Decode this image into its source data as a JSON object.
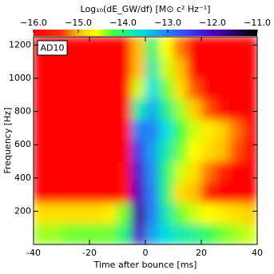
{
  "chart_data": {
    "type": "heatmap",
    "colorbar_label": "Log₁₀(dE_GW/df) [M⊙ c² Hz⁻¹]",
    "x_label": "Time after bounce [ms]",
    "y_label": "Frequency [Hz]",
    "annotation": "AD10",
    "xlim": [
      -40,
      40
    ],
    "ylim": [
      0,
      1250
    ],
    "xticks": [
      -40,
      -20,
      0,
      20,
      40
    ],
    "yticks": [
      200,
      400,
      600,
      800,
      1000,
      1200
    ],
    "clim": [
      -16,
      -11
    ],
    "cticks": [
      {
        "value": -16,
        "label": "−16.0"
      },
      {
        "value": -15,
        "label": "−15.0"
      },
      {
        "value": -14,
        "label": "−14.0"
      },
      {
        "value": -13,
        "label": "−13.0"
      },
      {
        "value": -12,
        "label": "−12.0"
      },
      {
        "value": -11,
        "label": "−11.0"
      }
    ],
    "colormap": [
      {
        "value": -16,
        "color": "#ff0000"
      },
      {
        "value": -15.4,
        "color": "#ff3000"
      },
      {
        "value": -15,
        "color": "#ffc000"
      },
      {
        "value": -14.6,
        "color": "#ffff00"
      },
      {
        "value": -14.2,
        "color": "#40ff40"
      },
      {
        "value": -13.6,
        "color": "#00e0e0"
      },
      {
        "value": -12.8,
        "color": "#3060ff"
      },
      {
        "value": -12,
        "color": "#5000c0"
      },
      {
        "value": -11,
        "color": "#000000"
      }
    ],
    "xbins": [
      -40,
      -35,
      -30,
      -25,
      -20,
      -15,
      -10,
      -5,
      0,
      5,
      10,
      15,
      20,
      25,
      30,
      35,
      40
    ],
    "ybins": [
      0,
      125,
      250,
      375,
      500,
      625,
      750,
      875,
      1000,
      1125,
      1250
    ],
    "z": [
      [
        -14.4,
        -14.4,
        -14.3,
        -14.3,
        -14.3,
        -14.3,
        -14.0,
        -12.0,
        -13.2,
        -13.6,
        -13.8,
        -13.9,
        -14.1,
        -14.3,
        -14.4,
        -14.5
      ],
      [
        -14.8,
        -14.8,
        -14.8,
        -14.8,
        -14.8,
        -14.7,
        -14.3,
        -11.8,
        -13.0,
        -13.8,
        -14.3,
        -14.5,
        -14.6,
        -14.7,
        -14.8,
        -14.9
      ],
      [
        -16,
        -16,
        -16,
        -16,
        -16,
        -16,
        -15.8,
        -12.0,
        -13.0,
        -14.0,
        -14.8,
        -15.0,
        -15.5,
        -16,
        -16,
        -16
      ],
      [
        -16,
        -16,
        -16,
        -16,
        -16,
        -16,
        -15.8,
        -12.2,
        -13.1,
        -14.0,
        -14.5,
        -14.8,
        -15.2,
        -15.6,
        -16,
        -16
      ],
      [
        -16,
        -16,
        -16,
        -16,
        -16,
        -16,
        -16,
        -12.5,
        -13.2,
        -13.8,
        -14.3,
        -14.6,
        -14.8,
        -15.0,
        -15.3,
        -16
      ],
      [
        -16,
        -16,
        -16,
        -16,
        -16,
        -16,
        -16,
        -13.0,
        -13.0,
        -13.6,
        -14.2,
        -14.5,
        -14.7,
        -14.9,
        -15.2,
        -16
      ],
      [
        -16,
        -16,
        -16,
        -16,
        -16,
        -16,
        -16,
        -13.8,
        -13.3,
        -13.9,
        -14.4,
        -14.9,
        -15.3,
        -15.8,
        -16,
        -16
      ],
      [
        -16,
        -16,
        -16,
        -16,
        -16,
        -16,
        -16,
        -14.5,
        -13.6,
        -14.3,
        -14.8,
        -15.3,
        -16,
        -16,
        -16,
        -16
      ],
      [
        -16,
        -16,
        -16,
        -16,
        -16,
        -16,
        -16,
        -15.0,
        -13.8,
        -14.5,
        -15.0,
        -16,
        -16,
        -16,
        -16,
        -16
      ],
      [
        -16,
        -16,
        -16,
        -16,
        -16,
        -16,
        -16,
        -15.0,
        -14.0,
        -14.6,
        -15.2,
        -16,
        -16,
        -16,
        -16,
        -16
      ]
    ]
  }
}
